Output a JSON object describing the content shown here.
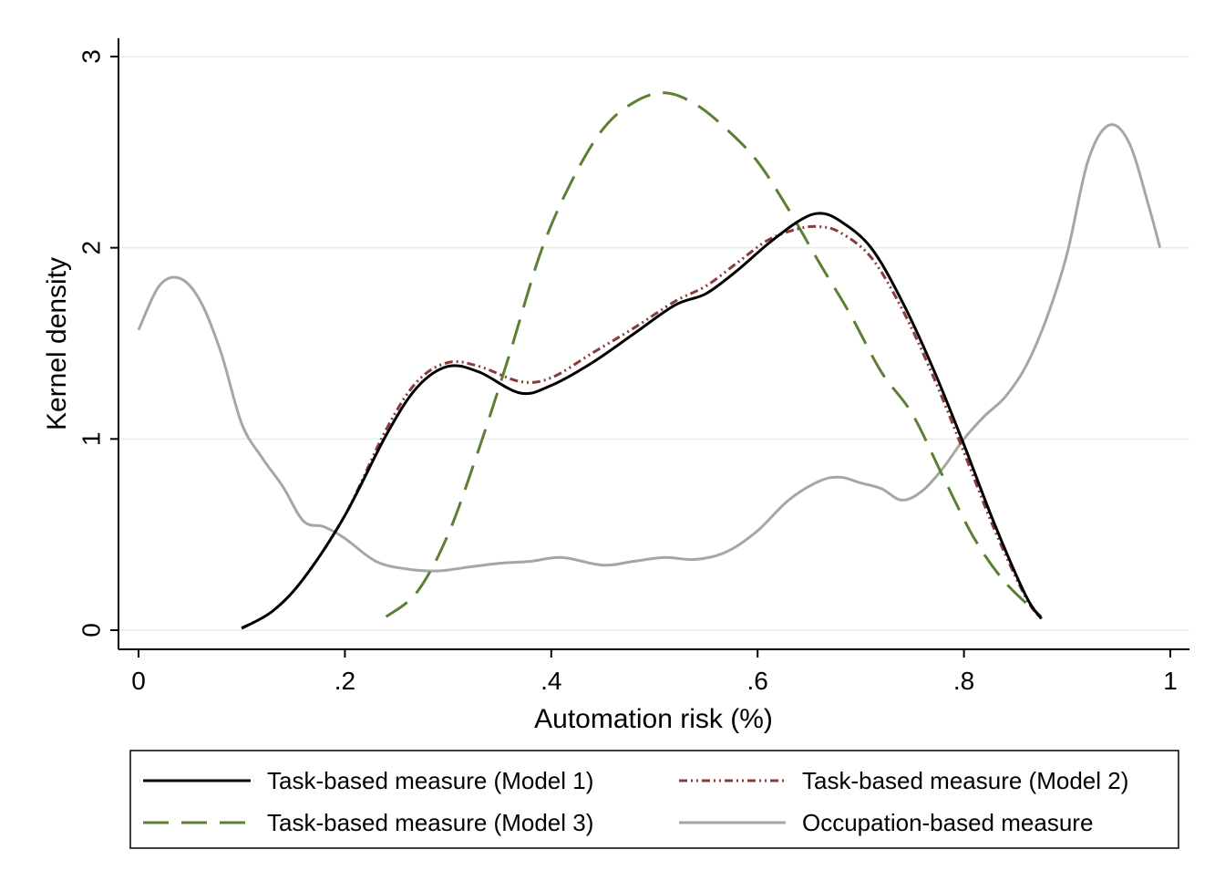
{
  "chart_data": {
    "type": "line",
    "title": "",
    "xlabel": "Automation risk (%)",
    "ylabel": "Kernel density",
    "xlim": [
      -0.02,
      1.02
    ],
    "ylim": [
      -0.1,
      3.1
    ],
    "grid": "horizontal",
    "legend_position": "bottom",
    "x_ticks": [
      {
        "value": 0,
        "label": "0"
      },
      {
        "value": 0.2,
        "label": ".2"
      },
      {
        "value": 0.4,
        "label": ".4"
      },
      {
        "value": 0.6,
        "label": ".6"
      },
      {
        "value": 0.8,
        "label": ".8"
      },
      {
        "value": 1,
        "label": "1"
      }
    ],
    "y_ticks": [
      {
        "value": 0,
        "label": "0"
      },
      {
        "value": 1,
        "label": "1"
      },
      {
        "value": 2,
        "label": "2"
      },
      {
        "value": 3,
        "label": "3"
      }
    ],
    "series": [
      {
        "name": "Task-based measure (Model 1)",
        "color": "#000000",
        "style": "solid",
        "x": [
          0.1,
          0.13,
          0.16,
          0.2,
          0.24,
          0.27,
          0.3,
          0.33,
          0.37,
          0.4,
          0.44,
          0.48,
          0.52,
          0.55,
          0.58,
          0.61,
          0.64,
          0.66,
          0.68,
          0.71,
          0.74,
          0.77,
          0.8,
          0.83,
          0.86,
          0.875
        ],
        "y": [
          0.01,
          0.1,
          0.27,
          0.6,
          1.02,
          1.27,
          1.38,
          1.35,
          1.24,
          1.28,
          1.4,
          1.55,
          1.7,
          1.76,
          1.88,
          2.02,
          2.14,
          2.18,
          2.14,
          2.0,
          1.72,
          1.37,
          0.97,
          0.55,
          0.18,
          0.06
        ]
      },
      {
        "name": "Task-based measure (Model 2)",
        "color": "#8b3a3a",
        "style": "dash-dot",
        "x": [
          0.1,
          0.13,
          0.16,
          0.2,
          0.24,
          0.27,
          0.3,
          0.33,
          0.37,
          0.4,
          0.44,
          0.48,
          0.52,
          0.55,
          0.58,
          0.61,
          0.64,
          0.66,
          0.68,
          0.71,
          0.74,
          0.77,
          0.8,
          0.83,
          0.86,
          0.875
        ],
        "y": [
          0.01,
          0.1,
          0.27,
          0.6,
          1.05,
          1.3,
          1.4,
          1.38,
          1.3,
          1.32,
          1.45,
          1.58,
          1.72,
          1.8,
          1.92,
          2.04,
          2.1,
          2.11,
          2.08,
          1.95,
          1.68,
          1.33,
          0.93,
          0.52,
          0.17,
          0.06
        ]
      },
      {
        "name": "Task-based measure (Model 3)",
        "color": "#5b7f33",
        "style": "dashed",
        "x": [
          0.24,
          0.27,
          0.3,
          0.33,
          0.36,
          0.39,
          0.42,
          0.45,
          0.48,
          0.51,
          0.54,
          0.57,
          0.6,
          0.63,
          0.66,
          0.69,
          0.72,
          0.75,
          0.78,
          0.81,
          0.84,
          0.875
        ],
        "y": [
          0.07,
          0.2,
          0.5,
          0.95,
          1.45,
          1.98,
          2.35,
          2.62,
          2.76,
          2.81,
          2.75,
          2.62,
          2.45,
          2.2,
          1.92,
          1.65,
          1.35,
          1.13,
          0.8,
          0.48,
          0.25,
          0.07
        ]
      },
      {
        "name": "Occupation-based measure",
        "color": "#a6a6a6",
        "style": "solid",
        "x": [
          0.0,
          0.02,
          0.04,
          0.06,
          0.08,
          0.1,
          0.12,
          0.14,
          0.16,
          0.18,
          0.2,
          0.23,
          0.26,
          0.29,
          0.32,
          0.35,
          0.38,
          0.41,
          0.45,
          0.48,
          0.51,
          0.54,
          0.57,
          0.6,
          0.63,
          0.66,
          0.68,
          0.7,
          0.72,
          0.74,
          0.76,
          0.78,
          0.8,
          0.82,
          0.84,
          0.86,
          0.88,
          0.9,
          0.92,
          0.94,
          0.96,
          0.98,
          0.99
        ],
        "y": [
          1.57,
          1.8,
          1.84,
          1.72,
          1.45,
          1.08,
          0.9,
          0.75,
          0.57,
          0.54,
          0.48,
          0.36,
          0.32,
          0.31,
          0.33,
          0.35,
          0.36,
          0.38,
          0.34,
          0.36,
          0.38,
          0.37,
          0.41,
          0.52,
          0.68,
          0.78,
          0.8,
          0.77,
          0.74,
          0.68,
          0.73,
          0.85,
          1.0,
          1.12,
          1.22,
          1.38,
          1.63,
          1.97,
          2.45,
          2.64,
          2.55,
          2.2,
          2.0
        ]
      }
    ]
  }
}
